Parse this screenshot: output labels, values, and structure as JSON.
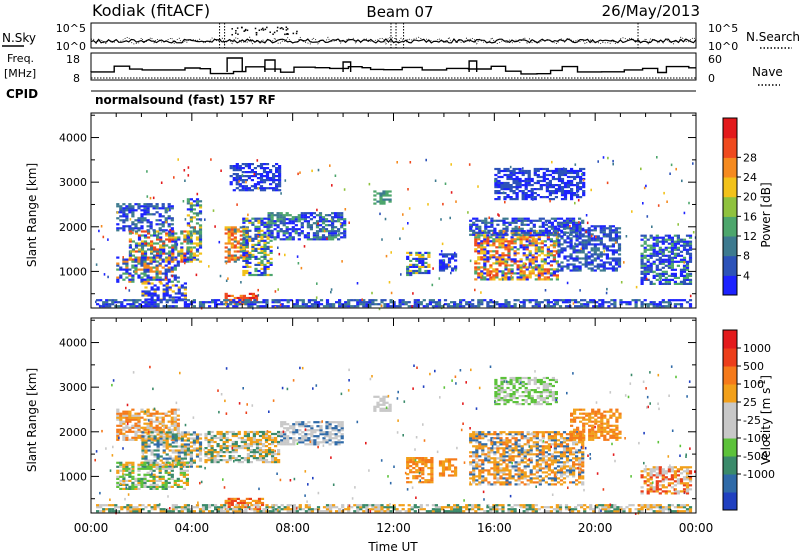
{
  "header": {
    "station": "Kodiak (fitACF)",
    "beam": "Beam 07",
    "date": "26/May/2013"
  },
  "summary_panels": {
    "left_labels": {
      "nsky": "N.Sky",
      "freq_line1": "Freq.",
      "freq_line2": "[MHz]",
      "cpid": "CPID"
    },
    "right_labels": {
      "nsearch": "N.Search",
      "nave": "Nave"
    },
    "noise_ticks": {
      "top": "10^5",
      "bottom": "10^0"
    },
    "freq_ticks": {
      "top": "18",
      "bottom": "8"
    },
    "nave_ticks": {
      "top": "60",
      "bottom": "0"
    },
    "cpid_text": "normalsound (fast) 157 RF"
  },
  "chart_data": [
    {
      "type": "heatmap",
      "name": "power",
      "ylabel": "Slant Range [km]",
      "y_ticks": [
        "1000",
        "2000",
        "3000",
        "4000"
      ],
      "y_tick_values": [
        1000,
        2000,
        3000,
        4000
      ],
      "ylim": [
        180,
        4550
      ],
      "xlim_hours": [
        0,
        24
      ],
      "colorbar": {
        "label": "Power [dB]",
        "tick_labels": [
          "4",
          "8",
          "12",
          "16",
          "20",
          "24",
          "28"
        ],
        "colors": [
          "#1c22ff",
          "#2c52b8",
          "#3d7a8f",
          "#4da66c",
          "#8fc23e",
          "#f2c21a",
          "#f58a1f",
          "#ef4a1e",
          "#e31a1c"
        ]
      },
      "regions": [
        {
          "t0": 1.0,
          "t1": 3.2,
          "r0": 1900,
          "r1": 2500,
          "colors": [
            "#1c22ff",
            "#2c52b8",
            "#3d7a8f"
          ]
        },
        {
          "t0": 1.5,
          "t1": 4.0,
          "r0": 1200,
          "r1": 1900,
          "colors": [
            "#1c22ff",
            "#3d7a8f",
            "#f2c21a",
            "#ef4a1e",
            "#4da66c"
          ]
        },
        {
          "t0": 1.0,
          "t1": 3.5,
          "r0": 750,
          "r1": 1300,
          "colors": [
            "#1c22ff",
            "#2c52b8",
            "#4da66c",
            "#f58a1f"
          ]
        },
        {
          "t0": 2.0,
          "t1": 3.8,
          "r0": 350,
          "r1": 750,
          "colors": [
            "#1c22ff",
            "#2c52b8",
            "#f2c21a"
          ]
        },
        {
          "t0": 3.8,
          "t1": 4.4,
          "r0": 1200,
          "r1": 2600,
          "colors": [
            "#1c22ff",
            "#3d7a8f",
            "#f2c21a",
            "#4da66c"
          ]
        },
        {
          "t0": 5.3,
          "t1": 6.6,
          "r0": 250,
          "r1": 500,
          "colors": [
            "#e31a1c",
            "#ef4a1e",
            "#f58a1f"
          ]
        },
        {
          "t0": 5.3,
          "t1": 6.2,
          "r0": 1200,
          "r1": 2000,
          "colors": [
            "#f58a1f",
            "#f2c21a",
            "#3d7a8f",
            "#ef4a1e"
          ]
        },
        {
          "t0": 6.0,
          "t1": 7.2,
          "r0": 900,
          "r1": 2200,
          "colors": [
            "#1c22ff",
            "#4da66c",
            "#f2c21a",
            "#2c52b8"
          ]
        },
        {
          "t0": 7.0,
          "t1": 10.0,
          "r0": 1700,
          "r1": 2300,
          "colors": [
            "#1c22ff",
            "#2c52b8",
            "#3d7a8f",
            "#4da66c"
          ]
        },
        {
          "t0": 5.5,
          "t1": 7.5,
          "r0": 2800,
          "r1": 3400,
          "colors": [
            "#1c22ff",
            "#2c52b8"
          ]
        },
        {
          "t0": 11.2,
          "t1": 11.8,
          "r0": 2500,
          "r1": 2800,
          "colors": [
            "#3d7a8f",
            "#4da66c"
          ]
        },
        {
          "t0": 12.5,
          "t1": 13.4,
          "r0": 900,
          "r1": 1400,
          "colors": [
            "#4da66c",
            "#f2c21a",
            "#2c52b8",
            "#1c22ff"
          ]
        },
        {
          "t0": 13.8,
          "t1": 14.4,
          "r0": 1000,
          "r1": 1400,
          "colors": [
            "#1c22ff",
            "#2c52b8"
          ]
        },
        {
          "t0": 15.2,
          "t1": 18.5,
          "r0": 800,
          "r1": 1900,
          "colors": [
            "#1c22ff",
            "#4da66c",
            "#f2c21a",
            "#f58a1f",
            "#ef4a1e"
          ]
        },
        {
          "t0": 15.0,
          "t1": 19.5,
          "r0": 1800,
          "r1": 2200,
          "colors": [
            "#1c22ff",
            "#2c52b8",
            "#3d7a8f"
          ]
        },
        {
          "t0": 18.5,
          "t1": 21.0,
          "r0": 1000,
          "r1": 2000,
          "colors": [
            "#1c22ff",
            "#2c52b8",
            "#3d7a8f"
          ]
        },
        {
          "t0": 21.8,
          "t1": 23.8,
          "r0": 700,
          "r1": 1800,
          "colors": [
            "#1c22ff",
            "#2c52b8",
            "#4da66c"
          ]
        },
        {
          "t0": 16.0,
          "t1": 19.5,
          "r0": 2600,
          "r1": 3300,
          "colors": [
            "#1c22ff",
            "#2c52b8"
          ]
        },
        {
          "t0": 0.2,
          "t1": 23.8,
          "r0": 200,
          "r1": 380,
          "colors": [
            "#1c22ff",
            "#2c52b8",
            "#3d7a8f"
          ]
        }
      ]
    },
    {
      "type": "heatmap",
      "name": "velocity",
      "xlabel": "Time UT",
      "ylabel": "Slant Range [km]",
      "y_ticks": [
        "1000",
        "2000",
        "3000",
        "4000"
      ],
      "y_tick_values": [
        1000,
        2000,
        3000,
        4000
      ],
      "x_ticks": [
        "00:00",
        "04:00",
        "08:00",
        "12:00",
        "16:00",
        "20:00",
        "00:00"
      ],
      "x_tick_hours": [
        0,
        4,
        8,
        12,
        16,
        20,
        24
      ],
      "ylim": [
        180,
        4550
      ],
      "xlim_hours": [
        0,
        24
      ],
      "colorbar": {
        "label": "Velocity [m s",
        "label_sup": "-1",
        "label_end": "]",
        "tick_labels": [
          "1000",
          "500",
          "100",
          "25",
          "-25",
          "-100",
          "-500",
          "-1000"
        ],
        "colors": [
          "#2040c0",
          "#2f6aa8",
          "#3a8a6a",
          "#5cc23a",
          "#c8c8c8",
          "#c8c8c8",
          "#f2a01a",
          "#f57a1a",
          "#ec3e1a",
          "#e31a1c"
        ]
      },
      "regions": [
        {
          "t0": 1.0,
          "t1": 3.5,
          "r0": 1800,
          "r1": 2500,
          "colors": [
            "#f57a1a",
            "#f2a01a",
            "#c8c8c8"
          ]
        },
        {
          "t0": 2.0,
          "t1": 4.4,
          "r0": 1200,
          "r1": 2000,
          "colors": [
            "#f2a01a",
            "#3a8a6a",
            "#c8c8c8",
            "#2f6aa8"
          ]
        },
        {
          "t0": 1.0,
          "t1": 3.8,
          "r0": 700,
          "r1": 1300,
          "colors": [
            "#5cc23a",
            "#3a8a6a",
            "#c8c8c8",
            "#f2a01a"
          ]
        },
        {
          "t0": 5.3,
          "t1": 6.8,
          "r0": 250,
          "r1": 500,
          "colors": [
            "#f57a1a",
            "#f2a01a",
            "#ec3e1a"
          ]
        },
        {
          "t0": 4.5,
          "t1": 7.5,
          "r0": 1300,
          "r1": 2000,
          "colors": [
            "#c8c8c8",
            "#3a8a6a",
            "#f2a01a"
          ]
        },
        {
          "t0": 7.5,
          "t1": 10.0,
          "r0": 1700,
          "r1": 2200,
          "colors": [
            "#c8c8c8",
            "#c8c8c8",
            "#2f6aa8"
          ]
        },
        {
          "t0": 11.2,
          "t1": 11.8,
          "r0": 2450,
          "r1": 2800,
          "colors": [
            "#c8c8c8"
          ]
        },
        {
          "t0": 12.5,
          "t1": 13.5,
          "r0": 850,
          "r1": 1400,
          "colors": [
            "#f57a1a",
            "#f2a01a"
          ]
        },
        {
          "t0": 13.8,
          "t1": 14.4,
          "r0": 1000,
          "r1": 1400,
          "colors": [
            "#f2a01a",
            "#f57a1a"
          ]
        },
        {
          "t0": 15.0,
          "t1": 19.5,
          "r0": 800,
          "r1": 2000,
          "colors": [
            "#f57a1a",
            "#f2a01a",
            "#f2a01a",
            "#c8c8c8",
            "#2f6aa8"
          ]
        },
        {
          "t0": 19.0,
          "t1": 21.0,
          "r0": 1800,
          "r1": 2500,
          "colors": [
            "#f2a01a",
            "#f57a1a"
          ]
        },
        {
          "t0": 16.0,
          "t1": 18.5,
          "r0": 2600,
          "r1": 3200,
          "colors": [
            "#c8c8c8",
            "#5cc23a"
          ]
        },
        {
          "t0": 21.8,
          "t1": 23.8,
          "r0": 600,
          "r1": 1200,
          "colors": [
            "#c8c8c8",
            "#ec3e1a",
            "#f2a01a"
          ]
        },
        {
          "t0": 0.2,
          "t1": 23.8,
          "r0": 200,
          "r1": 380,
          "colors": [
            "#c8c8c8",
            "#f2a01a",
            "#3a8a6a"
          ]
        }
      ]
    }
  ]
}
